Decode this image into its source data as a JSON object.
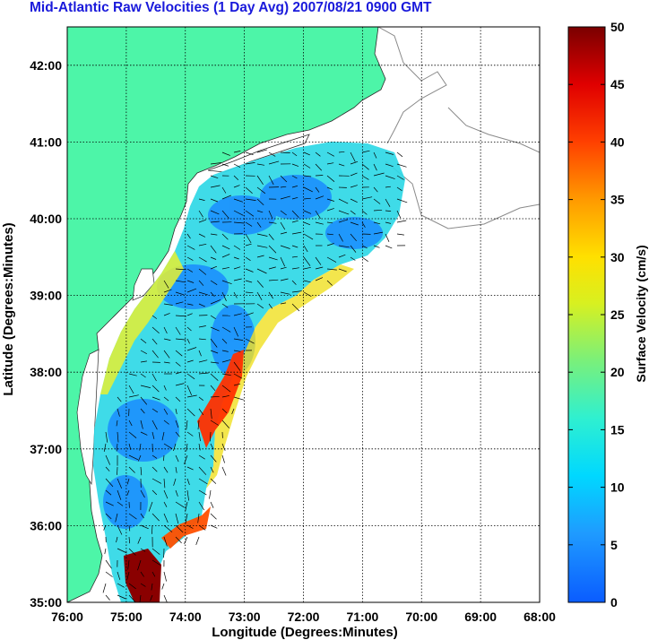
{
  "title": "Mid-Atlantic Raw Velocities (1 Day Avg) 2007/08/21 0900 GMT",
  "chart_data": {
    "type": "heatmap",
    "title": "Mid-Atlantic Raw Velocities (1 Day Avg) 2007/08/21 0900 GMT",
    "xlabel": "Longitude (Degrees:Minutes)",
    "ylabel": "Latitude (Degrees:Minutes)",
    "x_ticks": [
      "76:00",
      "75:00",
      "74:00",
      "73:00",
      "72:00",
      "71:00",
      "70:00",
      "69:00",
      "68:00"
    ],
    "y_ticks": [
      "42:00",
      "41:00",
      "40:00",
      "39:00",
      "38:00",
      "37:00",
      "36:00",
      "35:00"
    ],
    "xlim": [
      -76,
      -68
    ],
    "ylim": [
      35,
      42.5
    ],
    "grid": true,
    "colorbar": {
      "label": "Surface Velocity (cm/s)",
      "ticks": [
        0,
        5,
        10,
        15,
        20,
        25,
        30,
        35,
        40,
        45,
        50
      ],
      "range": [
        0,
        50
      ],
      "colormap": [
        "#0a5cff",
        "#00c8ff",
        "#33f0c0",
        "#a8f040",
        "#ffe600",
        "#ff8800",
        "#ff1a00",
        "#7a0000"
      ]
    },
    "colors": {
      "land": "#4df5a8",
      "coast": "#808080",
      "grid": "#000000",
      "vectors": "#000000"
    },
    "velocity_regions": [
      {
        "lon": -74.8,
        "lat": 36.2,
        "speed": 8
      },
      {
        "lon": -74.5,
        "lat": 37.2,
        "speed": 6
      },
      {
        "lon": -74.0,
        "lat": 38.6,
        "speed": 12
      },
      {
        "lon": -73.3,
        "lat": 39.2,
        "speed": 6
      },
      {
        "lon": -72.4,
        "lat": 39.8,
        "speed": 10
      },
      {
        "lon": -71.0,
        "lat": 39.8,
        "speed": 5
      },
      {
        "lon": -73.3,
        "lat": 38.0,
        "speed": 40
      },
      {
        "lon": -73.6,
        "lat": 37.3,
        "speed": 38
      },
      {
        "lon": -73.8,
        "lat": 36.2,
        "speed": 42
      },
      {
        "lon": -74.6,
        "lat": 35.3,
        "speed": 50
      },
      {
        "lon": -73.7,
        "lat": 36.8,
        "speed": 26
      },
      {
        "lon": -72.7,
        "lat": 39.3,
        "speed": 28
      }
    ]
  }
}
